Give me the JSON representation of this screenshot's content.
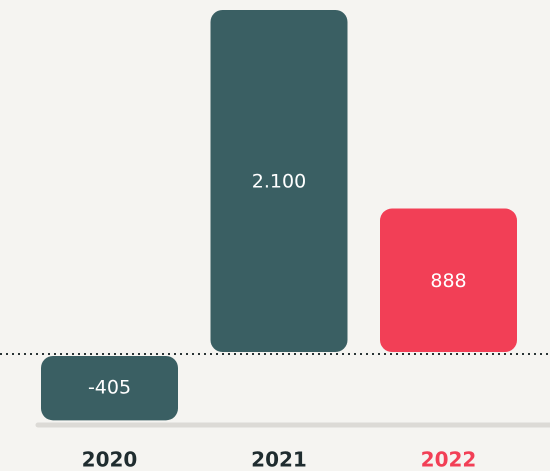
{
  "chart_data": {
    "type": "bar",
    "categories": [
      "2020",
      "2021",
      "2022"
    ],
    "values": [
      -405,
      2100,
      888
    ],
    "value_labels": [
      "-405",
      "2.100",
      "888"
    ],
    "colors": [
      "#3a5f63",
      "#3a5f63",
      "#f23f56"
    ],
    "category_colors": [
      "#1f2c2f",
      "#1f2c2f",
      "#f23f56"
    ]
  }
}
